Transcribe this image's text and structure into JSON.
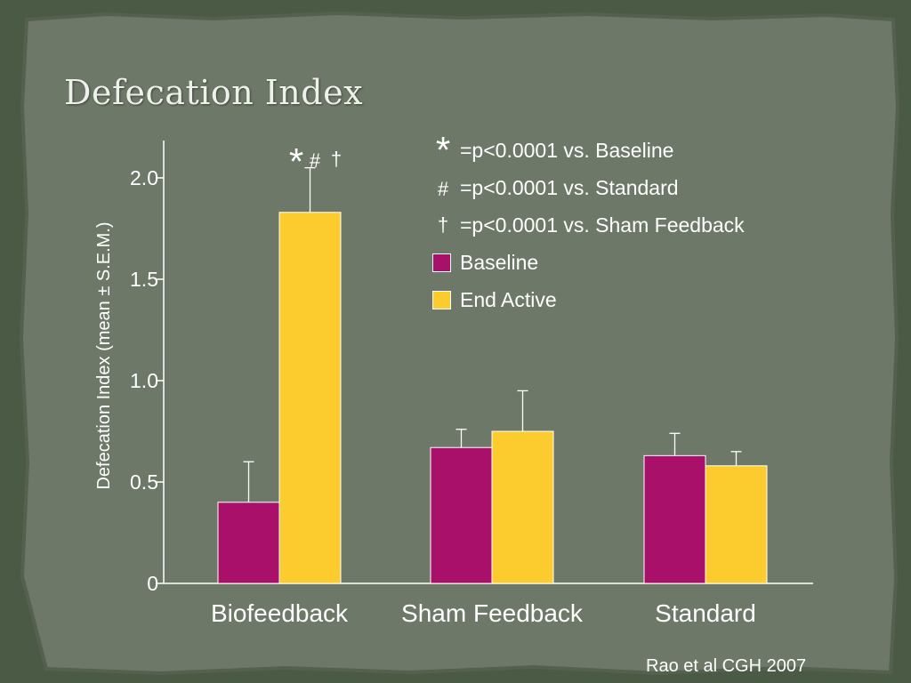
{
  "slide": {
    "title": "Defecation Index",
    "citation": "Rao et al  CGH 2007",
    "colors": {
      "background": "#4b5a45",
      "paper": "#6e7868",
      "baseline": "#a8106a",
      "end_active": "#fccc2e",
      "text": "#ffffff"
    }
  },
  "legend": {
    "notes": [
      {
        "symbol": "*",
        "text": "=p<0.0001 vs. Baseline"
      },
      {
        "symbol": "#",
        "text": "=p<0.0001 vs. Standard"
      },
      {
        "symbol": "†",
        "text": "=p<0.0001 vs. Sham Feedback"
      }
    ],
    "series": [
      {
        "label": "Baseline",
        "color": "#a8106a"
      },
      {
        "label": "End Active",
        "color": "#fccc2e"
      }
    ]
  },
  "chart_data": {
    "type": "bar",
    "ylabel": "Defecation Index (mean  ± S.E.M.)",
    "ylim": [
      0,
      2.2
    ],
    "yticks": [
      0,
      0.5,
      1.0,
      1.5,
      2.0
    ],
    "ytick_labels": [
      "0",
      "0.5",
      "1.0",
      "1.5",
      "2.0"
    ],
    "categories": [
      "Biofeedback",
      "Sham Feedback",
      "Standard"
    ],
    "series": [
      {
        "name": "Baseline",
        "color": "#a8106a",
        "values": [
          0.4,
          0.67,
          0.63
        ],
        "errors": [
          0.2,
          0.09,
          0.11
        ]
      },
      {
        "name": "End Active",
        "color": "#fccc2e",
        "values": [
          1.83,
          0.75,
          0.58
        ],
        "errors": [
          0.22,
          0.2,
          0.07
        ]
      }
    ],
    "annotations": [
      {
        "category": "Biofeedback",
        "series": "End Active",
        "marks": [
          "*",
          "#",
          "†"
        ]
      }
    ],
    "grid": false,
    "legend_position": "top-right"
  }
}
